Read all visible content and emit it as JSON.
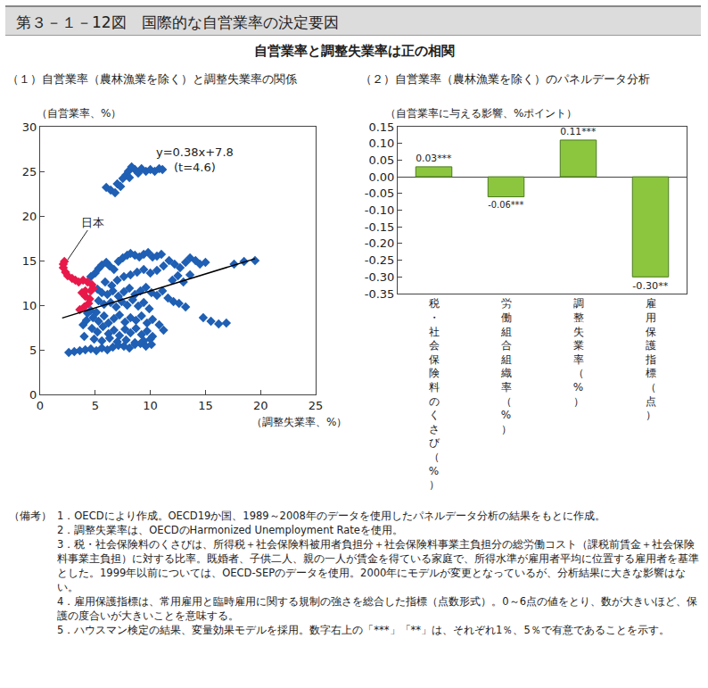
{
  "figure_title": "第３－１－12図　国際的な自営業率の決定要因",
  "subtitle": "自営業率と調整失業率は正の相関",
  "chart_data": [
    {
      "type": "scatter",
      "title": "（１）自営業率（農林漁業を除く）と調整失業率の関係",
      "xlabel": "（調整失業率、%）",
      "ylabel": "（自営業率、%）",
      "xlim": [
        0,
        25
      ],
      "xticks": [
        0,
        5,
        10,
        15,
        20,
        25
      ],
      "ylim": [
        0,
        30
      ],
      "yticks": [
        0,
        5,
        10,
        15,
        20,
        25,
        30
      ],
      "grid": false,
      "series": [
        {
          "type": "scatter",
          "color": "#1f5fb4",
          "marker": "diamond",
          "x": [
            6.0,
            6.4,
            6.8,
            7.0,
            7.3,
            7.5,
            7.8,
            8.0,
            8.3,
            8.6,
            8.9,
            9.2,
            9.6,
            10.0,
            10.4,
            10.8,
            11.1,
            8.1,
            4.6,
            5.0,
            5.3,
            5.6,
            6.0,
            6.3,
            6.7,
            7.1,
            7.5,
            7.9,
            8.2,
            8.6,
            9.0,
            9.4,
            9.8,
            10.2,
            10.6,
            11.0,
            5.9,
            6.5,
            7.0,
            7.6,
            8.2,
            8.8,
            9.4,
            10.0,
            10.6,
            11.2,
            11.7,
            12.2,
            12.7,
            13.2,
            13.6,
            14.1,
            14.5,
            15.0,
            17.6,
            18.5,
            19.5,
            12.0,
            12.5,
            13.0,
            13.6,
            5.2,
            5.6,
            6.1,
            6.6,
            7.1,
            7.6,
            8.1,
            8.6,
            9.1,
            9.6,
            10.1,
            10.6,
            11.1,
            11.6,
            12.1,
            12.6,
            13.2,
            5.3,
            5.8,
            6.4,
            6.9,
            7.4,
            7.9,
            8.4,
            8.9,
            9.4,
            9.9,
            4.6,
            5.1,
            4.8,
            5.3,
            5.8,
            6.2,
            6.7,
            7.2,
            7.7,
            8.2,
            8.7,
            9.2,
            9.7,
            10.2,
            10.8,
            11.2,
            4.7,
            5.2,
            5.7,
            6.2,
            6.7,
            7.2,
            7.7,
            8.2,
            8.7,
            9.2,
            9.7,
            10.2,
            4.9,
            5.6,
            6.3,
            7.0,
            7.8,
            8.6,
            9.4,
            10.0,
            14.8,
            15.5,
            16.2,
            16.9,
            2.6,
            3.1,
            3.6,
            4.1,
            4.6,
            5.1,
            5.6,
            6.1,
            6.6,
            7.1,
            7.6,
            8.1,
            8.6,
            9.1,
            9.6,
            10.1,
            3.9,
            4.2,
            4.3,
            4.0
          ],
          "values": [
            23.2,
            22.9,
            22.6,
            23.6,
            23.3,
            24.2,
            24.6,
            25.0,
            25.5,
            25.2,
            24.8,
            25.3,
            25.0,
            25.2,
            25.0,
            25.3,
            25.2,
            24.3,
            13.2,
            13.6,
            14.1,
            14.5,
            14.8,
            14.4,
            14.0,
            14.9,
            15.3,
            15.6,
            15.8,
            15.6,
            15.4,
            15.7,
            15.9,
            15.4,
            15.5,
            15.7,
            12.6,
            12.2,
            12.8,
            13.2,
            13.4,
            13.7,
            14.0,
            13.6,
            13.9,
            14.4,
            15.0,
            14.6,
            14.2,
            14.8,
            15.3,
            15.0,
            14.6,
            14.8,
            14.6,
            14.9,
            15.0,
            12.8,
            13.3,
            12.6,
            13.4,
            11.8,
            11.4,
            11.2,
            11.6,
            11.0,
            11.5,
            11.9,
            11.2,
            11.6,
            12.0,
            11.4,
            11.1,
            11.6,
            10.8,
            10.4,
            10.2,
            9.8,
            10.5,
            10.1,
            10.3,
            9.8,
            10.4,
            10.0,
            10.6,
            9.9,
            10.3,
            9.6,
            9.4,
            9.2,
            8.6,
            8.2,
            8.8,
            8.0,
            8.5,
            8.9,
            8.1,
            8.6,
            8.3,
            8.8,
            8.0,
            8.4,
            7.8,
            7.2,
            7.4,
            7.0,
            7.6,
            6.8,
            7.2,
            6.6,
            7.3,
            6.9,
            7.4,
            6.7,
            7.1,
            6.5,
            6.2,
            6.0,
            6.3,
            5.9,
            6.1,
            5.8,
            6.0,
            6.2,
            8.6,
            8.2,
            7.9,
            8.0,
            4.7,
            4.8,
            4.9,
            5.0,
            5.1,
            4.9,
            5.2,
            5.0,
            5.3,
            5.5,
            5.4,
            5.2,
            5.6,
            5.7,
            5.4,
            5.6,
            7.8,
            8.3,
            9.1,
            6.5
          ]
        },
        {
          "type": "scatter",
          "color": "#e8194a",
          "marker": "diamond",
          "x": [
            2.1,
            2.2,
            2.1,
            2.3,
            2.5,
            2.9,
            3.2,
            3.5,
            3.9,
            4.3,
            4.7,
            4.8,
            4.6,
            4.1,
            3.8,
            4.1,
            4.5,
            4.4,
            4.0,
            3.6
          ],
          "values": [
            14.6,
            14.9,
            14.2,
            13.7,
            13.3,
            13.0,
            12.8,
            12.6,
            12.8,
            12.6,
            12.3,
            11.9,
            11.6,
            11.6,
            11.4,
            11.0,
            10.7,
            10.2,
            9.8,
            9.5
          ]
        },
        {
          "type": "line",
          "color": "#000000",
          "line_style": "solid",
          "x": [
            2,
            19.5
          ],
          "values": [
            8.56,
            15.21
          ]
        }
      ],
      "annotations": [
        {
          "text": "y=0.38x+7.8\n(t=4.6)",
          "x": 14,
          "y": 26.3
        },
        {
          "text": "日本",
          "x": 4.8,
          "y": 19.3,
          "arrow_x": 2.4,
          "arrow_y": 14.9
        }
      ]
    },
    {
      "type": "bar",
      "title": "（２）自営業率（農林漁業を除く）のパネルデータ分析",
      "ylabel": "（自営業率に与える影響、%ポイント）",
      "categories": [
        "税・社会保険料のくさび（%）",
        "労働組合組織率（%）",
        "調整失業率（%）",
        "雇用保護指標（点）"
      ],
      "values": [
        0.03,
        -0.06,
        0.11,
        -0.3
      ],
      "value_labels": [
        "0.03***",
        "-0.06***",
        "0.11***",
        "-0.30**"
      ],
      "data_labels": true,
      "color": "#8cc63f",
      "ylim": [
        -0.35,
        0.15
      ],
      "yticks": [
        0.15,
        {
          "value": 0.1,
          "label": "0.10"
        },
        0.05,
        {
          "value": 0,
          "label": "0.00"
        },
        -0.05,
        {
          "value": -0.1,
          "label": "-0.10"
        },
        -0.15,
        {
          "value": -0.2,
          "label": "-0.20"
        },
        -0.25,
        {
          "value": -0.3,
          "label": "-0.30"
        },
        -0.35
      ],
      "grid": false
    }
  ],
  "notes": {
    "label": "（備考）",
    "items": [
      "1．OECDにより作成。OECD19か国、1989～2008年のデータを使用したパネルデータ分析の結果をもとに作成。",
      "2．調整失業率は、OECDのHarmonized Unemployment Rateを使用。",
      "3．税・社会保険料のくさびは、所得税＋社会保険料被用者負担分＋社会保険料事業主負担分の総労働コスト（課税前賃金＋社会保険料事業主負担）に対する比率。既婚者、子供二人、親の一人が賃金を得ている家庭で、所得水準が雇用者平均に位置する雇用者を基準とした。1999年以前については、OECD-SEPのデータを使用。2000年にモデルが変更となっているが、分析結果に大きな影響はない。",
      "4．雇用保護指標は、常用雇用と臨時雇用に関する規制の強さを総合した指標（点数形式）。0～6点の値をとり、数が大きいほど、保護の度合いが大きいことを意味する。",
      "5．ハウスマン検定の結果、変量効果モデルを採用。数字右上の「***」「**」は、それぞれ1％、5％で有意であることを示す。"
    ]
  }
}
